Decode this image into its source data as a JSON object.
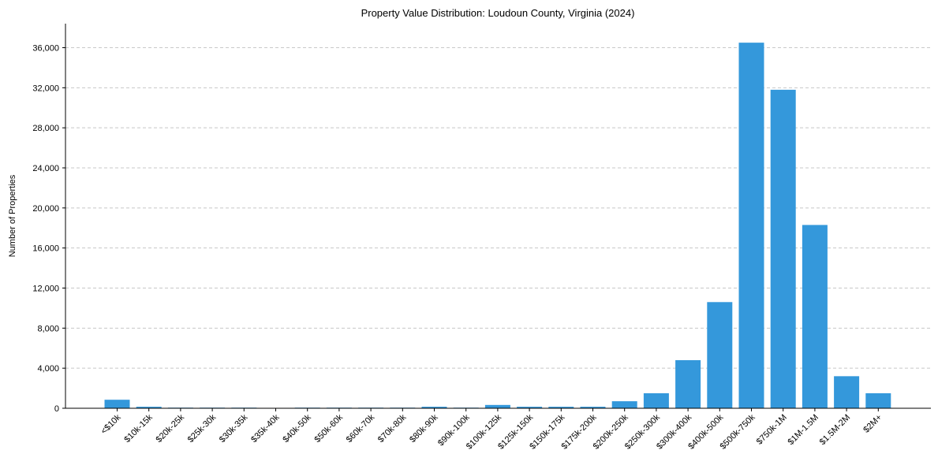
{
  "chart_data": {
    "type": "bar",
    "title": "Property Value Distribution: Loudoun County, Virginia (2024)",
    "xlabel": "",
    "ylabel": "Number of Properties",
    "ylim": [
      0,
      38400
    ],
    "yticks": [
      0,
      4000,
      8000,
      12000,
      16000,
      20000,
      24000,
      28000,
      32000,
      36000
    ],
    "ytick_labels": [
      "0",
      "4,000",
      "8,000",
      "12,000",
      "16,000",
      "20,000",
      "24,000",
      "28,000",
      "32,000",
      "36,000"
    ],
    "grid": "y, dashed",
    "bar_color": "#3498db",
    "categories": [
      "<$10k",
      "$10k-15k",
      "$20k-25k",
      "$25k-30k",
      "$30k-35k",
      "$35k-40k",
      "$40k-50k",
      "$50k-60k",
      "$60k-70k",
      "$70k-80k",
      "$80k-90k",
      "$90k-100k",
      "$100k-125k",
      "$125k-150k",
      "$150k-175k",
      "$175k-200k",
      "$200k-250k",
      "$250k-300k",
      "$300k-400k",
      "$400k-500k",
      "$500k-750k",
      "$750k-1M",
      "$1M-1.5M",
      "$1.5M-2M",
      "$2M+"
    ],
    "values": [
      850,
      150,
      60,
      60,
      60,
      20,
      60,
      60,
      60,
      60,
      150,
      60,
      330,
      150,
      150,
      150,
      700,
      1500,
      4800,
      10600,
      36500,
      31800,
      18300,
      3200,
      1500
    ]
  }
}
